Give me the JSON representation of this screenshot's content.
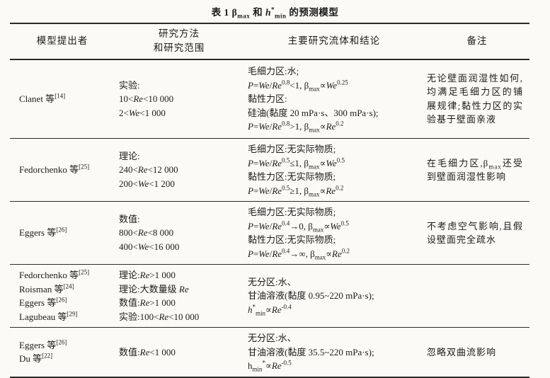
{
  "title": "表 1  β_{max} 和 |h|^{*}_{min} 的预测模型",
  "table": {
    "headers": {
      "proposer": "模型提出者",
      "method": [
        "研究方法",
        "和研究范围"
      ],
      "fluids": "主要研究流体和结论",
      "remarks": "备注"
    },
    "rows": [
      {
        "proposer": [
          "Clanet 等^{[14]}"
        ],
        "method": [
          "实验:",
          "10<|Re|<10 000",
          "2<|We|<1 000"
        ],
        "fluids": [
          "毛细力区:水;",
          "|P|=|We|/|Re|^{0.8}<1, β_{max}∝|We|^{0.25}",
          "黏性力区:",
          "硅油(黏度 20 mPa·s、300 mPa·s);",
          "|P|=|We|/|Re|^{0.8}>1, β_{max}∝|Re|^{0.2}"
        ],
        "remarks": "无论壁面润湿性如何,均满足毛细力区的铺展规律;黏性力区的实验基于壁面亲液"
      },
      {
        "proposer": [
          "Fedorchenko 等^{[25]}"
        ],
        "method": [
          "理论:",
          "240<|Re|<12 000",
          "200<|We|<1 200"
        ],
        "fluids": [
          "毛细力区:无实际物质;",
          "|P|=|We|/|Re|^{0.5}≤1, β_{max}∝|We|^{0.5}",
          "黏性力区:无实际物质;",
          "|P|=|We|/|Re|^{0.5}≥1, β_{max}∝|Re|^{0.2}"
        ],
        "remarks": "在毛细力区,β_{max}还受到壁面润湿性影响"
      },
      {
        "proposer": [
          "Eggers 等^{[26]}"
        ],
        "method": [
          "数值:",
          "800<|Re|<8 000",
          "400<|We|<16 000"
        ],
        "fluids": [
          "毛细力区:无实际物质;",
          "|P|=|We|/|Re|^{0.4}→0, β_{max}∝|We|^{0.5}",
          "黏性力区:无实际物质;",
          "|P|=|We|/|Re|^{0.4}→∞, β_{max}∝|Re|^{0.2}"
        ],
        "remarks": "不考虑空气影响,且假设壁面完全疏水"
      },
      {
        "proposer": [
          "Fedorchenko 等^{[25]}",
          "Roisman 等^{[24]}",
          "Eggers 等^{[26]}",
          "Lagubeau 等^{[29]}"
        ],
        "method": [
          "理论:|Re|>1 000",
          "理论:大数量级 |Re|",
          "数值:|Re|>1 000",
          "实验:100<|Re|<10 000"
        ],
        "fluids": [
          "无分区:水、",
          "甘油溶液(黏度 0.95~220 mPa·s);",
          "|h|^{*}_{min}∝|Re|^{-0.4}"
        ],
        "remarks": ""
      },
      {
        "proposer": [
          "Eggers 等^{[26]}",
          "Du 等^{[22]}"
        ],
        "method": [
          "数值:|Re|<1 000"
        ],
        "fluids": [
          "无分区:水、",
          "甘油溶液(黏度 35.5~220 mPa·s);",
          "h_{min}^{*}∝|Re|^{-0.5}"
        ],
        "remarks": "忽略双曲流影响"
      }
    ]
  }
}
